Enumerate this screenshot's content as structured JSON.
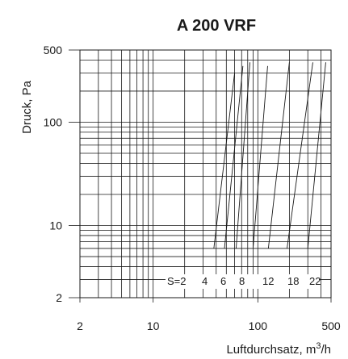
{
  "chart_data": {
    "type": "line",
    "title": "A 200 VRF",
    "xlabel": "Luftdurchsatz, m",
    "xlabel_sup": "3",
    "xlabel_suffix": "/h",
    "ylabel": "Druck, Pa",
    "x_scale": "log",
    "y_scale": "log",
    "xlim": [
      2,
      500
    ],
    "ylim": [
      2,
      500
    ],
    "x_ticks": [
      {
        "value": 2,
        "label": "2"
      },
      {
        "value": 10,
        "label": "10"
      },
      {
        "value": 100,
        "label": "100"
      },
      {
        "value": 500,
        "label": "500"
      }
    ],
    "y_ticks": [
      {
        "value": 2,
        "label": "2"
      },
      {
        "value": 10,
        "label": "10"
      },
      {
        "value": 100,
        "label": "100"
      },
      {
        "value": 500,
        "label": "500"
      }
    ],
    "grid": true,
    "series_prefix": "S=",
    "series": [
      {
        "label": "2",
        "x": [
          38,
          60
        ],
        "y": [
          6,
          300
        ]
      },
      {
        "label": "4",
        "x": [
          48,
          72
        ],
        "y": [
          6,
          350
        ]
      },
      {
        "label": "6",
        "x": [
          62,
          84
        ],
        "y": [
          6,
          380
        ]
      },
      {
        "label": "8",
        "x": [
          90,
          124
        ],
        "y": [
          6,
          350
        ]
      },
      {
        "label": "12",
        "x": [
          126,
          200
        ],
        "y": [
          6,
          380
        ]
      },
      {
        "label": "18",
        "x": [
          190,
          335
        ],
        "y": [
          6,
          380
        ]
      },
      {
        "label": "22",
        "x": [
          300,
          445
        ],
        "y": [
          6,
          380
        ]
      }
    ]
  }
}
